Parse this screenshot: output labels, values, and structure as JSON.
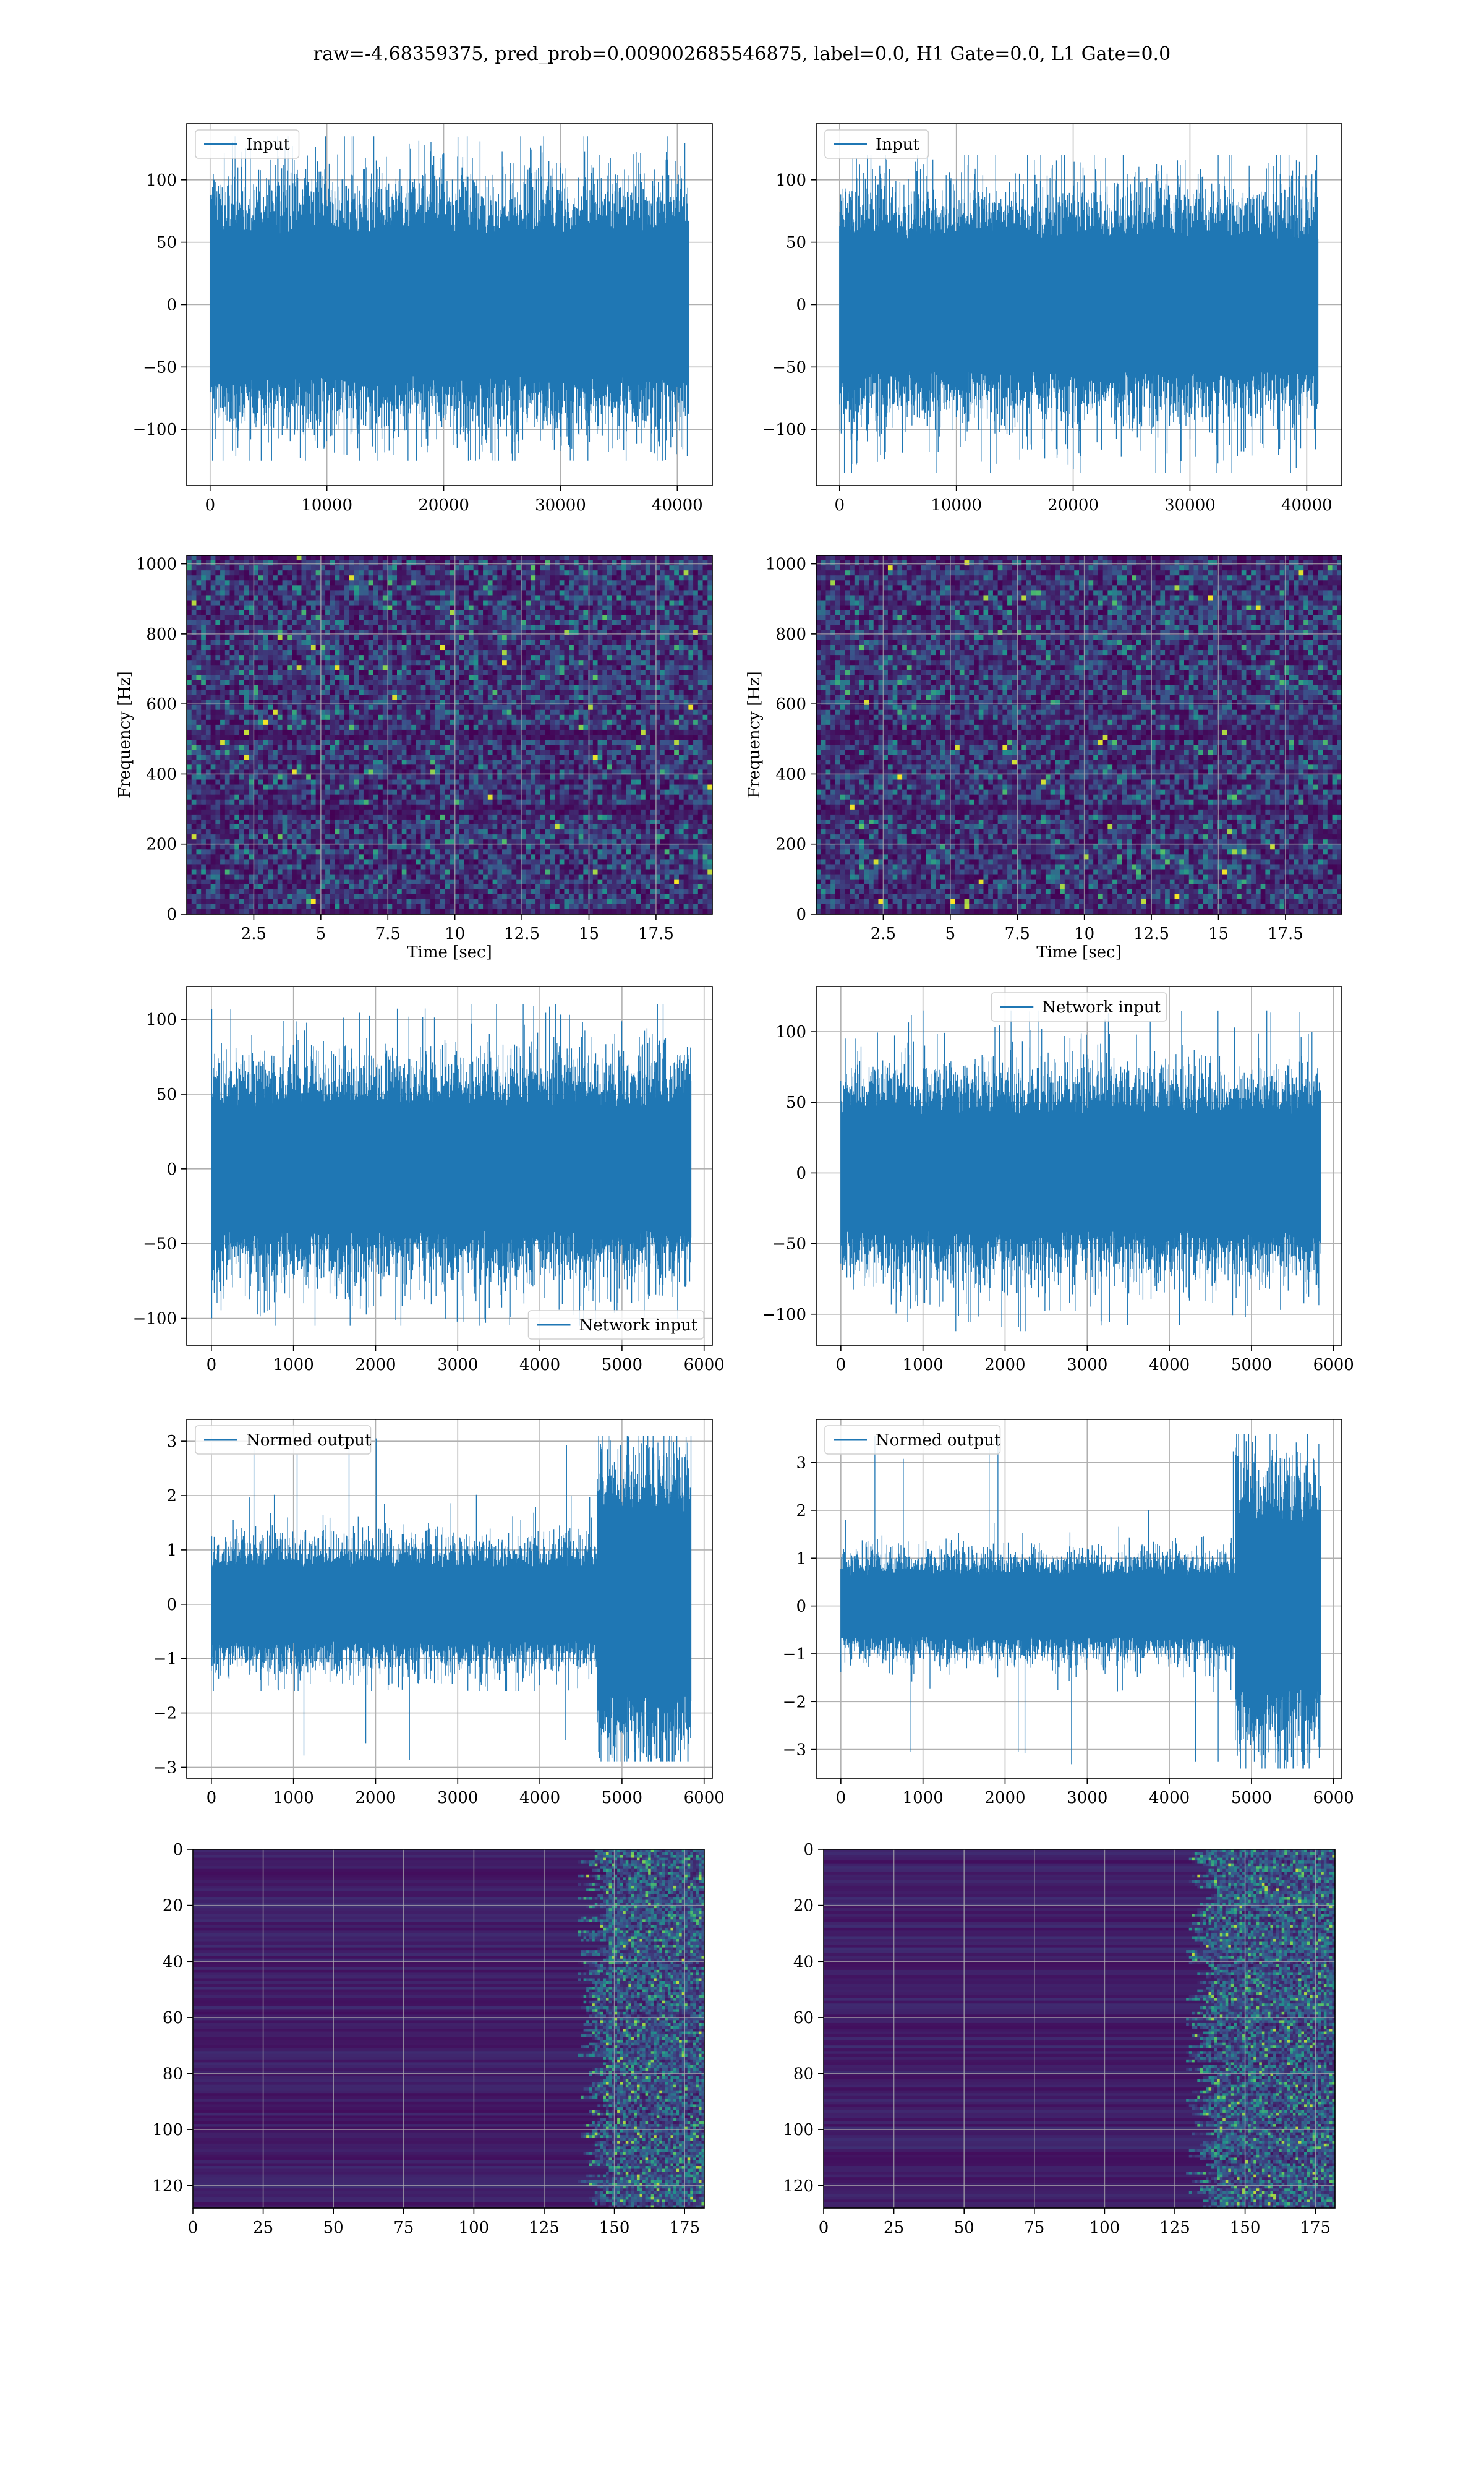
{
  "figure": {
    "title": "raw=-4.68359375, pred_prob=0.009002685546875, label=0.0, H1 Gate=0.0, L1 Gate=0.0"
  },
  "colors": {
    "line": "#1f77b4",
    "grid": "#b0b0b0",
    "heat_low": "#440154",
    "heat_mid": "#21918c",
    "heat_high": "#fde725"
  },
  "chart_data": [
    {
      "id": "input-h1",
      "type": "line",
      "legend": "Input",
      "legend_loc": "upper left",
      "xlim": [
        -2000,
        43000
      ],
      "ylim": [
        -145,
        145
      ],
      "xticks": [
        0,
        10000,
        20000,
        30000,
        40000
      ],
      "yticks": [
        -100,
        -50,
        0,
        50,
        100
      ],
      "x_range": [
        0,
        40960
      ],
      "band": 75,
      "spike_max": 135,
      "spike_min": -125
    },
    {
      "id": "input-l1",
      "type": "line",
      "legend": "Input",
      "legend_loc": "upper left",
      "xlim": [
        -2000,
        43000
      ],
      "ylim": [
        -145,
        145
      ],
      "xticks": [
        0,
        10000,
        20000,
        30000,
        40000
      ],
      "yticks": [
        -100,
        -50,
        0,
        50,
        100
      ],
      "x_range": [
        0,
        40960
      ],
      "band": 70,
      "spike_max": 120,
      "spike_min": -135
    },
    {
      "id": "spectrogram-h1",
      "type": "heatmap",
      "xlabel": "Time [sec]",
      "ylabel": "Frequency [Hz]",
      "xlim": [
        0,
        19.6
      ],
      "ylim": [
        0,
        1024
      ],
      "xticks": [
        2.5,
        5.0,
        7.5,
        10.0,
        12.5,
        15.0,
        17.5
      ],
      "yticks": [
        0,
        200,
        400,
        600,
        800,
        1000
      ]
    },
    {
      "id": "spectrogram-l1",
      "type": "heatmap",
      "xlabel": "Time [sec]",
      "ylabel": "Frequency [Hz]",
      "xlim": [
        0,
        19.6
      ],
      "ylim": [
        0,
        1024
      ],
      "xticks": [
        2.5,
        5.0,
        7.5,
        10.0,
        12.5,
        15.0,
        17.5
      ],
      "yticks": [
        0,
        200,
        400,
        600,
        800,
        1000
      ]
    },
    {
      "id": "network-input-h1",
      "type": "line",
      "legend": "Network input",
      "legend_loc": "lower right",
      "xlim": [
        -300,
        6100
      ],
      "ylim": [
        -118,
        122
      ],
      "xticks": [
        0,
        1000,
        2000,
        3000,
        4000,
        5000,
        6000
      ],
      "yticks": [
        -100,
        -50,
        0,
        50,
        100
      ],
      "x_range": [
        0,
        5840
      ],
      "band": 55,
      "spike_max": 110,
      "spike_min": -105
    },
    {
      "id": "network-input-l1",
      "type": "line",
      "legend": "Network input",
      "legend_loc": "upper center",
      "xlim": [
        -300,
        6100
      ],
      "ylim": [
        -122,
        132
      ],
      "xticks": [
        0,
        1000,
        2000,
        3000,
        4000,
        5000,
        6000
      ],
      "yticks": [
        -100,
        -50,
        0,
        50,
        100
      ],
      "x_range": [
        0,
        5840
      ],
      "band": 55,
      "spike_max": 115,
      "spike_min": -112
    },
    {
      "id": "normed-output-h1",
      "type": "line",
      "legend": "Normed output",
      "legend_loc": "upper left",
      "xlim": [
        -300,
        6100
      ],
      "ylim": [
        -3.2,
        3.4
      ],
      "xticks": [
        0,
        1000,
        2000,
        3000,
        4000,
        5000,
        6000
      ],
      "yticks": [
        -3,
        -2,
        -1,
        0,
        1,
        2,
        3
      ],
      "x_range": [
        0,
        5840
      ],
      "band": 0.9,
      "spike_max": 3.1,
      "spike_min": -2.9,
      "burst_start": 4700,
      "burst_band": 2.2
    },
    {
      "id": "normed-output-l1",
      "type": "line",
      "legend": "Normed output",
      "legend_loc": "upper left",
      "xlim": [
        -300,
        6100
      ],
      "ylim": [
        -3.6,
        3.9
      ],
      "xticks": [
        0,
        1000,
        2000,
        3000,
        4000,
        5000,
        6000
      ],
      "yticks": [
        -3,
        -2,
        -1,
        0,
        1,
        2,
        3
      ],
      "x_range": [
        0,
        5840
      ],
      "band": 0.85,
      "spike_max": 3.6,
      "spike_min": -3.4,
      "burst_start": 4800,
      "burst_band": 2.3
    },
    {
      "id": "features-h1",
      "type": "heatmap",
      "xlim": [
        0,
        182
      ],
      "ylim": [
        128,
        0
      ],
      "xticks": [
        0,
        25,
        50,
        75,
        100,
        125,
        150,
        175
      ],
      "yticks": [
        0,
        20,
        40,
        60,
        80,
        100,
        120
      ],
      "active_from": 148
    },
    {
      "id": "features-l1",
      "type": "heatmap",
      "xlim": [
        0,
        182
      ],
      "ylim": [
        128,
        0
      ],
      "xticks": [
        0,
        25,
        50,
        75,
        100,
        125,
        150,
        175
      ],
      "yticks": [
        0,
        20,
        40,
        60,
        80,
        100,
        120
      ],
      "active_from": 140
    }
  ]
}
